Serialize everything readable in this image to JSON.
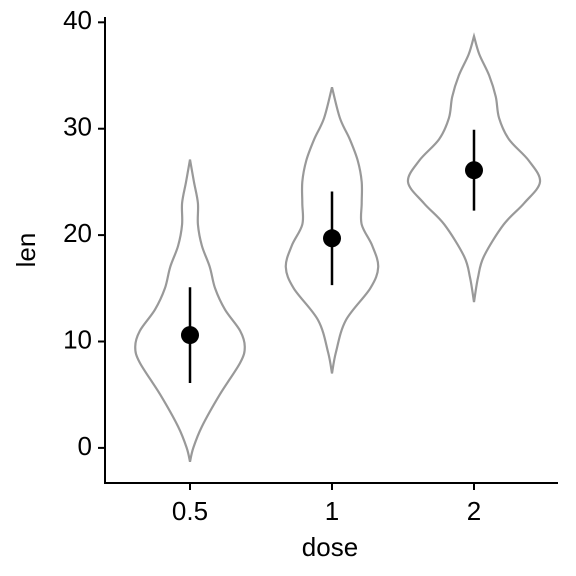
{
  "chart_data": {
    "type": "violin",
    "x_label": "dose",
    "y_label": "len",
    "categories": [
      "0.5",
      "1",
      "2"
    ],
    "means": [
      10.6,
      19.7,
      26.1
    ],
    "sd": [
      4.5,
      4.4,
      3.8
    ],
    "violins": [
      {
        "density_y": [
          -1.3,
          0,
          2,
          5,
          8,
          9.5,
          11,
          13,
          15,
          17,
          19,
          21,
          23,
          25,
          27.1
        ],
        "density": [
          0,
          0.05,
          0.18,
          0.45,
          0.76,
          0.83,
          0.76,
          0.53,
          0.38,
          0.3,
          0.18,
          0.12,
          0.12,
          0.06,
          0
        ]
      },
      {
        "density_y": [
          7,
          9,
          12,
          15,
          17,
          19,
          21,
          23,
          25,
          27,
          29,
          31,
          33.9
        ],
        "density": [
          0,
          0.06,
          0.21,
          0.58,
          0.7,
          0.61,
          0.45,
          0.45,
          0.45,
          0.39,
          0.27,
          0.12,
          0
        ]
      },
      {
        "density_y": [
          13.7,
          16,
          18,
          21,
          23,
          25,
          27,
          29,
          31,
          33,
          35,
          37,
          38.7
        ],
        "density": [
          0,
          0.06,
          0.15,
          0.45,
          0.76,
          1,
          0.83,
          0.53,
          0.38,
          0.33,
          0.23,
          0.08,
          0
        ]
      }
    ],
    "violin_color": "#999999",
    "point_color": "#000000",
    "ylim": [
      -3.3,
      40.5
    ],
    "yticks": [
      0,
      10,
      20,
      30,
      40
    ]
  }
}
